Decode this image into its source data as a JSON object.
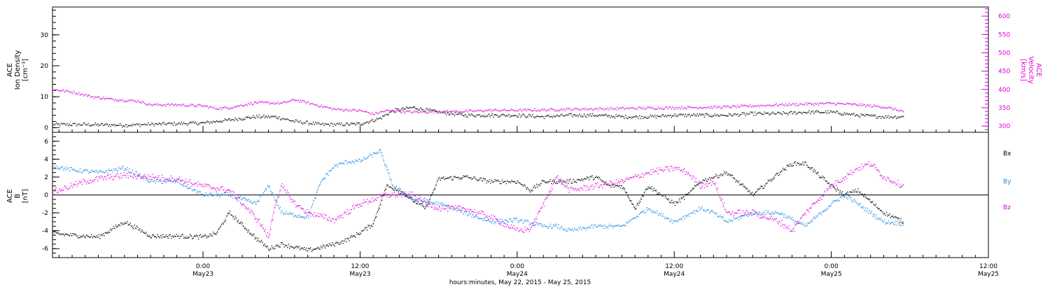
{
  "colors": {
    "black": "#000000",
    "magenta": "#dd00dd",
    "blue": "#1e88e5"
  },
  "x_axis": {
    "title": "hours:minutes, May 22, 2015 - May 25, 2015",
    "ticks": [
      {
        "time": "0:00",
        "day": "May23",
        "hour": 24
      },
      {
        "time": "12:00",
        "day": "May23",
        "hour": 36
      },
      {
        "time": "0:00",
        "day": "May24",
        "hour": 48
      },
      {
        "time": "12:00",
        "day": "May24",
        "hour": 60
      },
      {
        "time": "0:00",
        "day": "May25",
        "hour": 72
      },
      {
        "time": "12:00",
        "day": "May25",
        "hour": 84
      }
    ]
  },
  "chart_data": [
    {
      "type": "scatter",
      "panel": "top",
      "x_units": "hours since May 22, 2015 00:00",
      "xlim": [
        12.5,
        84.0
      ],
      "left_axis": {
        "label_lines": [
          "ACE",
          "Ion Density",
          "[cm⁻³]"
        ],
        "ylim": [
          -1.5,
          39
        ],
        "ticks": [
          0,
          10,
          20,
          30
        ]
      },
      "right_axis": {
        "label_lines": [
          "ACE",
          "Velocity",
          "[km/s]"
        ],
        "ylim": [
          283,
          625
        ],
        "ticks": [
          300,
          350,
          400,
          450,
          500,
          550,
          600
        ]
      },
      "series": [
        {
          "name": "Ion Density",
          "axis": "left",
          "color": "#000000",
          "x": [
            12.5,
            15,
            18,
            21,
            24,
            26,
            28,
            29.5,
            31,
            33,
            34.5,
            36,
            37.5,
            38.5,
            40,
            42,
            44,
            46,
            48,
            50,
            52,
            54,
            56,
            58,
            60,
            62,
            64,
            66,
            68,
            70,
            72,
            74,
            76,
            77.5
          ],
          "y": [
            1,
            1,
            0.8,
            1.2,
            1.5,
            2.5,
            3.5,
            3.5,
            2,
            1,
            1,
            1.2,
            3,
            5.5,
            6.5,
            5,
            4,
            4,
            4,
            3.5,
            4,
            4,
            3.5,
            3.5,
            4,
            4,
            4,
            4.5,
            4.5,
            5,
            5,
            4,
            3.5,
            3.5
          ]
        },
        {
          "name": "Velocity",
          "axis": "right",
          "color": "#dd00dd",
          "x": [
            12.5,
            14,
            15.5,
            17,
            19,
            20,
            22,
            24,
            25,
            26,
            28,
            30,
            31,
            32,
            34,
            36,
            37,
            38,
            40,
            42,
            44,
            46,
            48,
            50,
            52,
            54,
            56,
            58,
            60,
            62,
            64,
            66,
            68,
            70,
            72,
            74,
            76,
            77.5
          ],
          "y": [
            400,
            393,
            380,
            373,
            368,
            358,
            358,
            355,
            348,
            350,
            364,
            362,
            372,
            363,
            346,
            342,
            333,
            342,
            338,
            339,
            340,
            343,
            343,
            344,
            346,
            347,
            348,
            349,
            350,
            351,
            352,
            355,
            358,
            360,
            362,
            358,
            352,
            340
          ]
        }
      ]
    },
    {
      "type": "scatter",
      "panel": "bottom",
      "x_units": "hours since May 22, 2015 00:00",
      "xlim": [
        12.5,
        84.0
      ],
      "y_axis": {
        "label_lines": [
          "ACE",
          "B",
          "[nT]"
        ],
        "ylim": [
          -7,
          7
        ],
        "ticks": [
          -6,
          -4,
          -2,
          0,
          2,
          4,
          6
        ]
      },
      "legend": [
        "Bx",
        "By",
        "Bz"
      ],
      "series": [
        {
          "name": "Bx",
          "color": "#000000",
          "noise": 0.25,
          "x": [
            12.5,
            14,
            16,
            18,
            20,
            22,
            24,
            25,
            26,
            28,
            29,
            30,
            32,
            34,
            35,
            36,
            37,
            38,
            39,
            40,
            41,
            42,
            44,
            46,
            48,
            49,
            50,
            52,
            54,
            55,
            56,
            57,
            58,
            60,
            61,
            62,
            64,
            66,
            68,
            69,
            70,
            72,
            73,
            74,
            76,
            77.5
          ],
          "y": [
            -4.3,
            -4.5,
            -4.7,
            -3,
            -4.6,
            -4.6,
            -4.7,
            -4.3,
            -2,
            -4.8,
            -6,
            -5.5,
            -6.2,
            -5.5,
            -5,
            -4.2,
            -3.2,
            1,
            0.5,
            -0.6,
            -1.5,
            1.8,
            2,
            1.5,
            1.5,
            0.5,
            1.5,
            1.5,
            2,
            1,
            1,
            -1.5,
            1,
            -1,
            0,
            1.5,
            2.5,
            0,
            2.5,
            3.5,
            3.5,
            1,
            0,
            0.5,
            -2,
            -3
          ]
        },
        {
          "name": "By",
          "color": "#1e88e5",
          "noise": 0.25,
          "x": [
            12.5,
            14,
            16,
            18,
            20,
            22,
            24,
            26,
            28,
            29,
            30,
            32,
            33,
            34,
            35,
            36,
            37,
            37.5,
            38.5,
            40,
            42,
            44,
            46,
            48,
            50,
            51,
            52,
            54,
            56,
            58,
            60,
            62,
            63,
            64,
            66,
            68,
            70,
            72,
            73,
            74,
            76,
            77.5
          ],
          "y": [
            3.2,
            2.8,
            2.5,
            3,
            1.5,
            1.5,
            0,
            0,
            -1,
            1,
            -2,
            -2.5,
            1.5,
            3.2,
            3.7,
            3.8,
            4.5,
            5,
            1,
            -0.5,
            -1,
            -2,
            -3,
            -2.8,
            -3.5,
            -3.5,
            -4,
            -3.5,
            -3.5,
            -1.5,
            -3,
            -1.5,
            -2,
            -3,
            -2,
            -2,
            -3.5,
            -1,
            0,
            -1,
            -3,
            -3.2
          ]
        },
        {
          "name": "Bz",
          "color": "#dd00dd",
          "noise": 0.35,
          "x": [
            12.5,
            13.5,
            15,
            16,
            18,
            20,
            22,
            24,
            26,
            27,
            28,
            28.5,
            29,
            29.5,
            30,
            31,
            32,
            34,
            36,
            38,
            40,
            41,
            42,
            44,
            46,
            48,
            49,
            50,
            51,
            52,
            54,
            56,
            58,
            60,
            61,
            62,
            63,
            64,
            66,
            68,
            69,
            70,
            72,
            74,
            75,
            76,
            77.5
          ],
          "y": [
            0.3,
            0.8,
            1.5,
            1.8,
            2.2,
            2,
            1.8,
            1,
            0.5,
            -1,
            -2.5,
            -3.5,
            -4.8,
            -1,
            1,
            -1,
            -2,
            -2.8,
            -1,
            0,
            0,
            -0.8,
            -1.5,
            -1.5,
            -2.5,
            -4,
            -3.8,
            -1,
            2,
            0.5,
            1,
            1.5,
            2.5,
            3,
            2.5,
            1,
            1.5,
            -2,
            -2,
            -3,
            -4,
            -2,
            1,
            3,
            3.5,
            2,
            1
          ]
        }
      ]
    }
  ]
}
